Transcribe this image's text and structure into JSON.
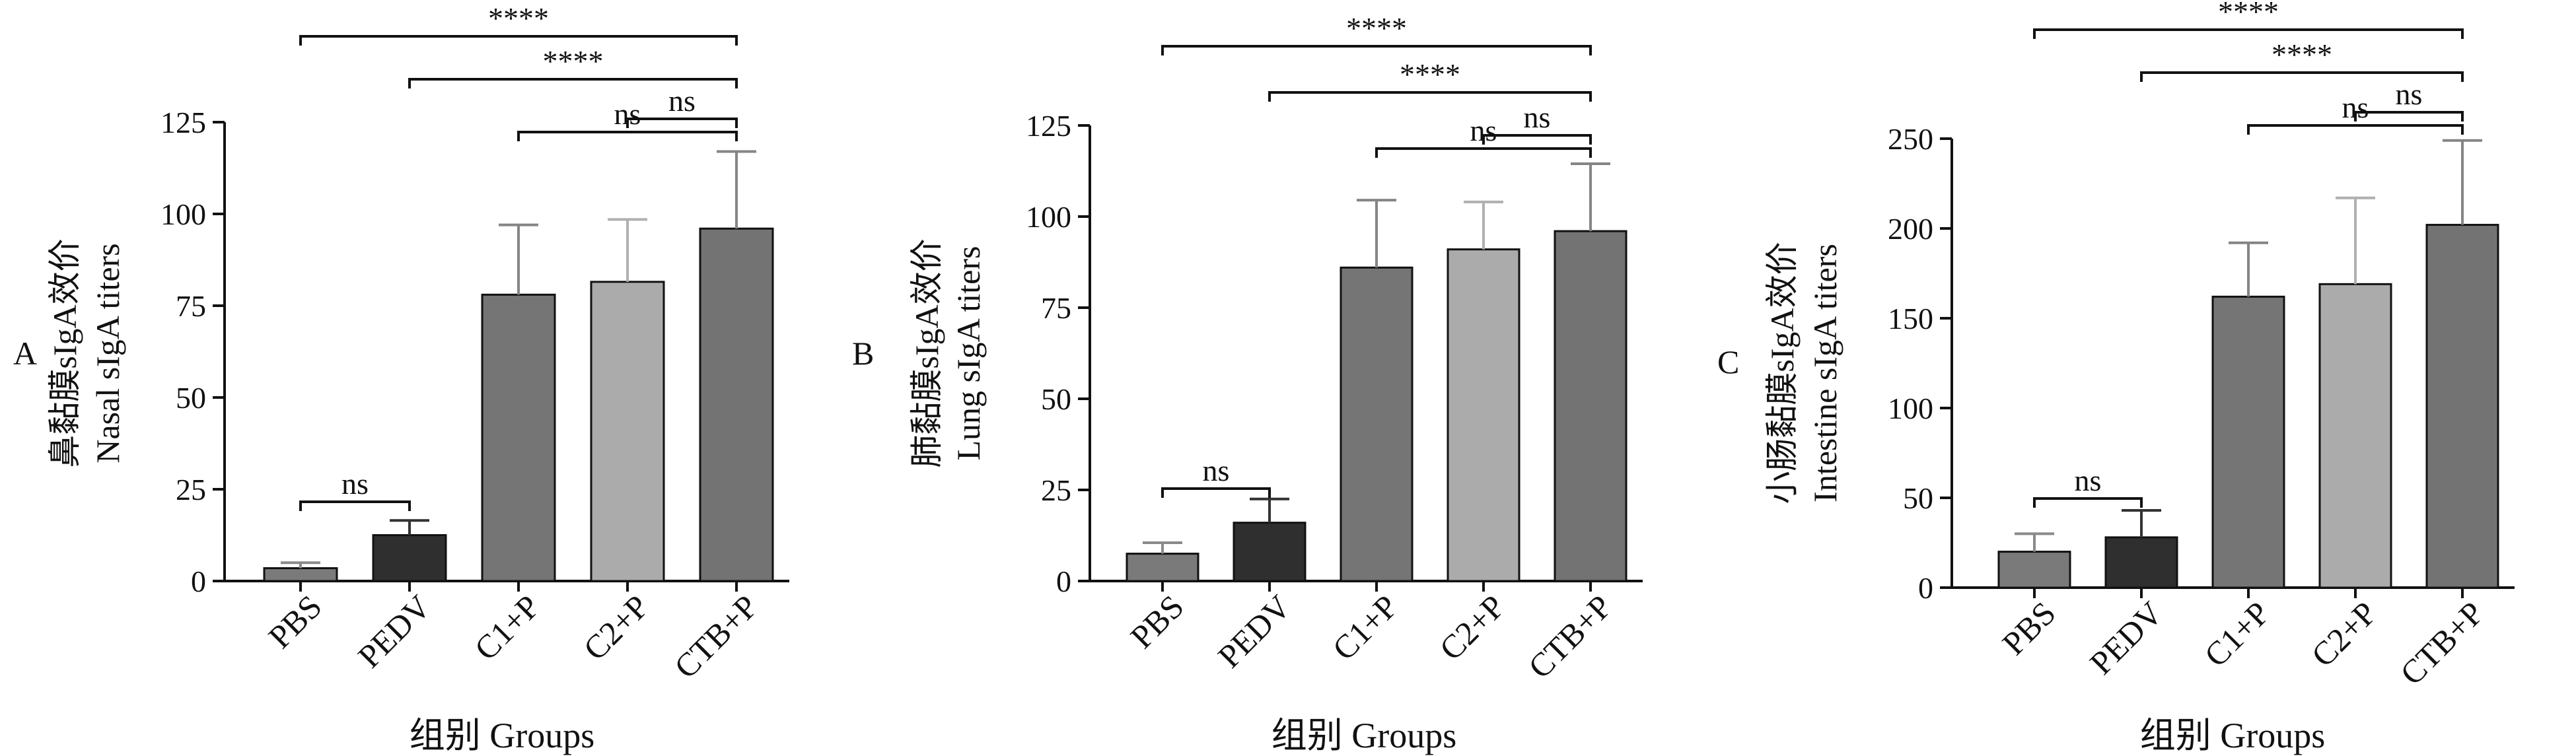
{
  "chart_data": [
    {
      "type": "bar",
      "panel_label": "A",
      "ylabel_cn": "鼻黏膜sIgA效价",
      "ylabel_en": "Nasal sIgA titers",
      "xlabel": "组别 Groups",
      "categories": [
        "PBS",
        "PEDV",
        "C1+P",
        "C2+P",
        "CTB+P"
      ],
      "values": [
        3.5,
        12.5,
        78,
        81.5,
        96
      ],
      "errors": [
        1.5,
        4,
        19,
        17,
        21
      ],
      "yticks": [
        0,
        25,
        50,
        75,
        100,
        125
      ],
      "ylim": [
        0,
        125
      ],
      "bar_colors": [
        "#7a7a7a",
        "#2f2f2f",
        "#757575",
        "#ababab",
        "#737373"
      ],
      "error_colors": [
        "#8a8a8a",
        "#333333",
        "#858585",
        "#b0b0b0",
        "#858585"
      ],
      "significance": [
        {
          "label": "****",
          "from": 0,
          "to": 4
        },
        {
          "label": "****",
          "from": 1,
          "to": 4
        },
        {
          "label": "ns",
          "from": 2,
          "to": 4
        },
        {
          "label": "ns",
          "from": 3,
          "to": 4
        },
        {
          "label": "ns",
          "from": 0,
          "to": 1
        }
      ]
    },
    {
      "type": "bar",
      "panel_label": "B",
      "ylabel_cn": "肺黏膜sIgA效价",
      "ylabel_en": "Lung sIgA titers",
      "xlabel": "组别 Groups",
      "categories": [
        "PBS",
        "PEDV",
        "C1+P",
        "C2+P",
        "CTB+P"
      ],
      "values": [
        7.5,
        16,
        86,
        91,
        96
      ],
      "errors": [
        3,
        6.5,
        18.5,
        13,
        18.5
      ],
      "yticks": [
        0,
        25,
        50,
        75,
        100,
        125
      ],
      "ylim": [
        0,
        125
      ],
      "bar_colors": [
        "#7a7a7a",
        "#2f2f2f",
        "#757575",
        "#ababab",
        "#737373"
      ],
      "error_colors": [
        "#8a8a8a",
        "#333333",
        "#858585",
        "#b0b0b0",
        "#858585"
      ],
      "significance": [
        {
          "label": "****",
          "from": 0,
          "to": 4
        },
        {
          "label": "****",
          "from": 1,
          "to": 4
        },
        {
          "label": "ns",
          "from": 2,
          "to": 4
        },
        {
          "label": "ns",
          "from": 3,
          "to": 4
        },
        {
          "label": "ns",
          "from": 0,
          "to": 1
        }
      ]
    },
    {
      "type": "bar",
      "panel_label": "C",
      "ylabel_cn": "小肠黏膜sIgA效价",
      "ylabel_en": "Intestine sIgA titers",
      "xlabel": "组别 Groups",
      "categories": [
        "PBS",
        "PEDV",
        "C1+P",
        "C2+P",
        "CTB+P"
      ],
      "values": [
        20,
        28,
        162,
        169,
        202
      ],
      "errors": [
        10,
        15,
        30,
        48,
        47
      ],
      "yticks": [
        0,
        50,
        100,
        150,
        200,
        250
      ],
      "ylim": [
        0,
        250
      ],
      "bar_colors": [
        "#7a7a7a",
        "#2f2f2f",
        "#757575",
        "#ababab",
        "#737373"
      ],
      "error_colors": [
        "#8a8a8a",
        "#333333",
        "#858585",
        "#b0b0b0",
        "#858585"
      ],
      "significance": [
        {
          "label": "****",
          "from": 0,
          "to": 4
        },
        {
          "label": "****",
          "from": 1,
          "to": 4
        },
        {
          "label": "ns",
          "from": 2,
          "to": 4
        },
        {
          "label": "ns",
          "from": 3,
          "to": 4
        },
        {
          "label": "ns",
          "from": 0,
          "to": 1
        }
      ]
    }
  ]
}
